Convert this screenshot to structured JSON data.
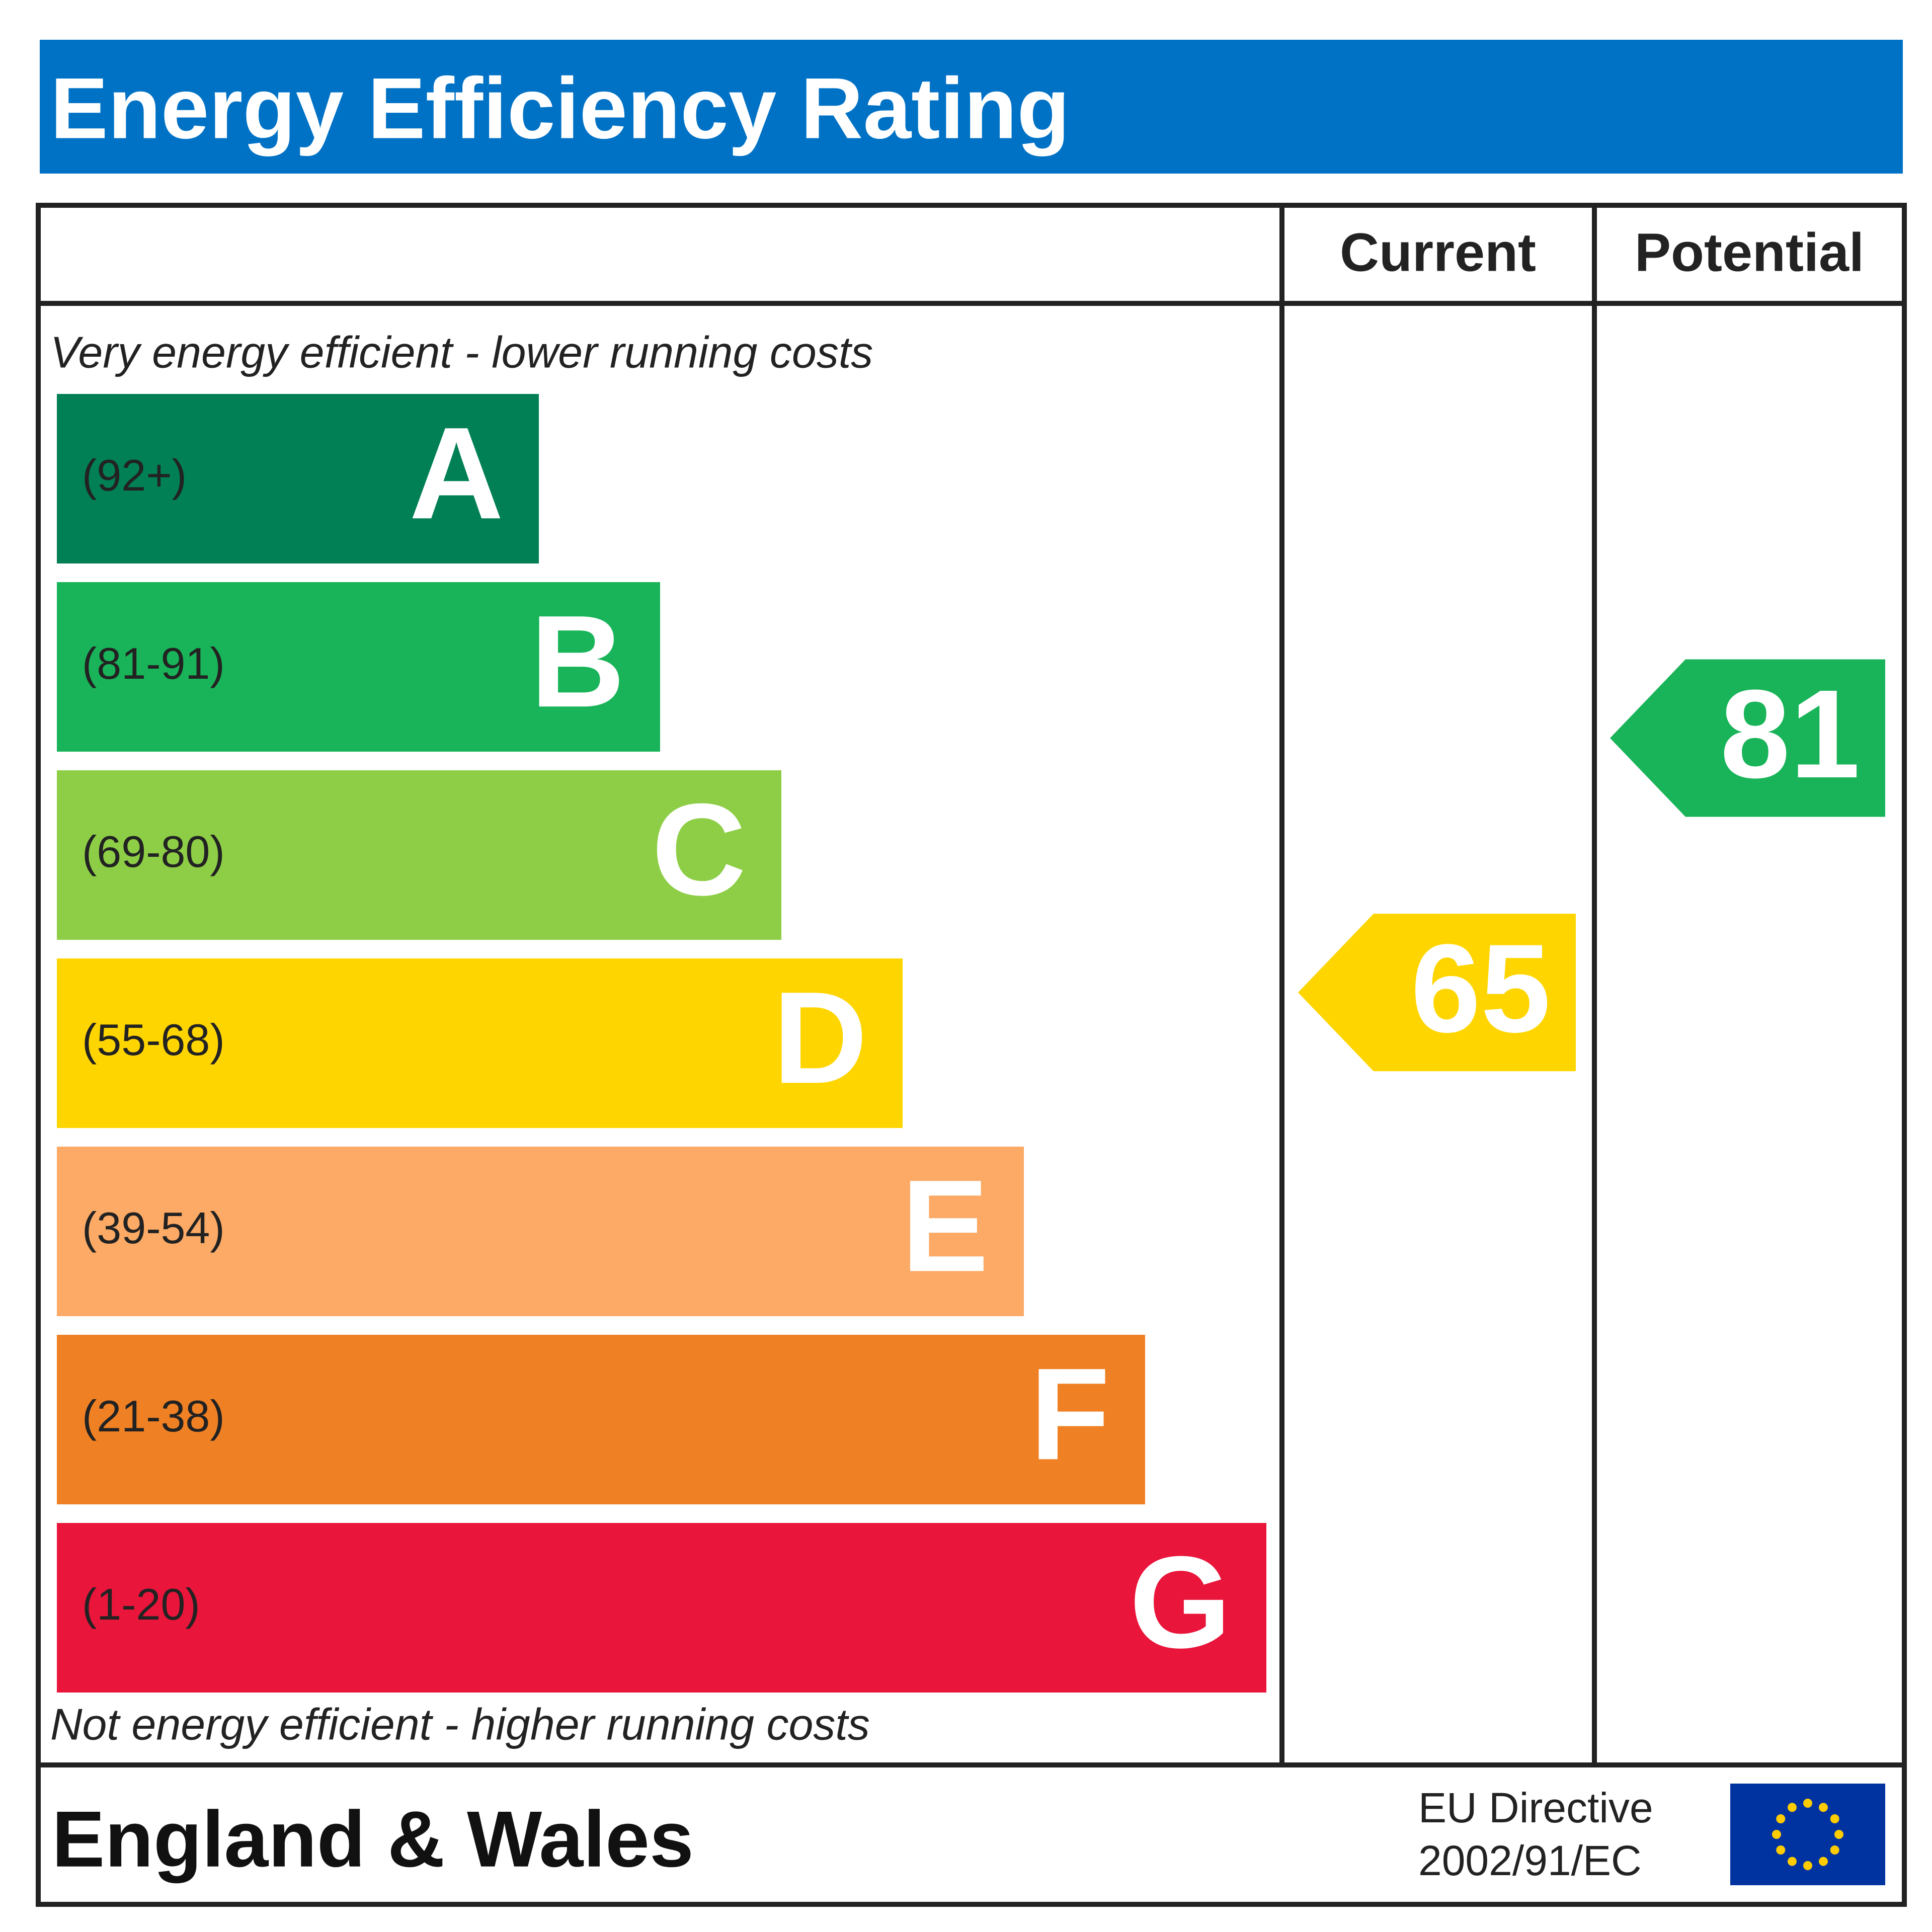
{
  "title": "Energy Efficiency Rating",
  "columns": [
    "Current",
    "Potential"
  ],
  "top_note": "Very energy efficient - lower running costs",
  "bottom_note": "Not energy efficient - higher running costs",
  "bands": [
    {
      "range": "(92+)",
      "letter": "A",
      "color": "#008054"
    },
    {
      "range": "(81-91)",
      "letter": "B",
      "color": "#19b459"
    },
    {
      "range": "(69-80)",
      "letter": "C",
      "color": "#8dce46"
    },
    {
      "range": "(55-68)",
      "letter": "D",
      "color": "#ffd500"
    },
    {
      "range": "(39-54)",
      "letter": "E",
      "color": "#fcaa65"
    },
    {
      "range": "(21-38)",
      "letter": "F",
      "color": "#ef8023"
    },
    {
      "range": "(1-20)",
      "letter": "G",
      "color": "#e9153b"
    }
  ],
  "current": {
    "value": 65,
    "color": "#ffd500"
  },
  "potential": {
    "value": 81,
    "color": "#19b459"
  },
  "footer": {
    "region": "England & Wales",
    "directive": [
      "EU Directive",
      "2002/91/EC"
    ]
  }
}
